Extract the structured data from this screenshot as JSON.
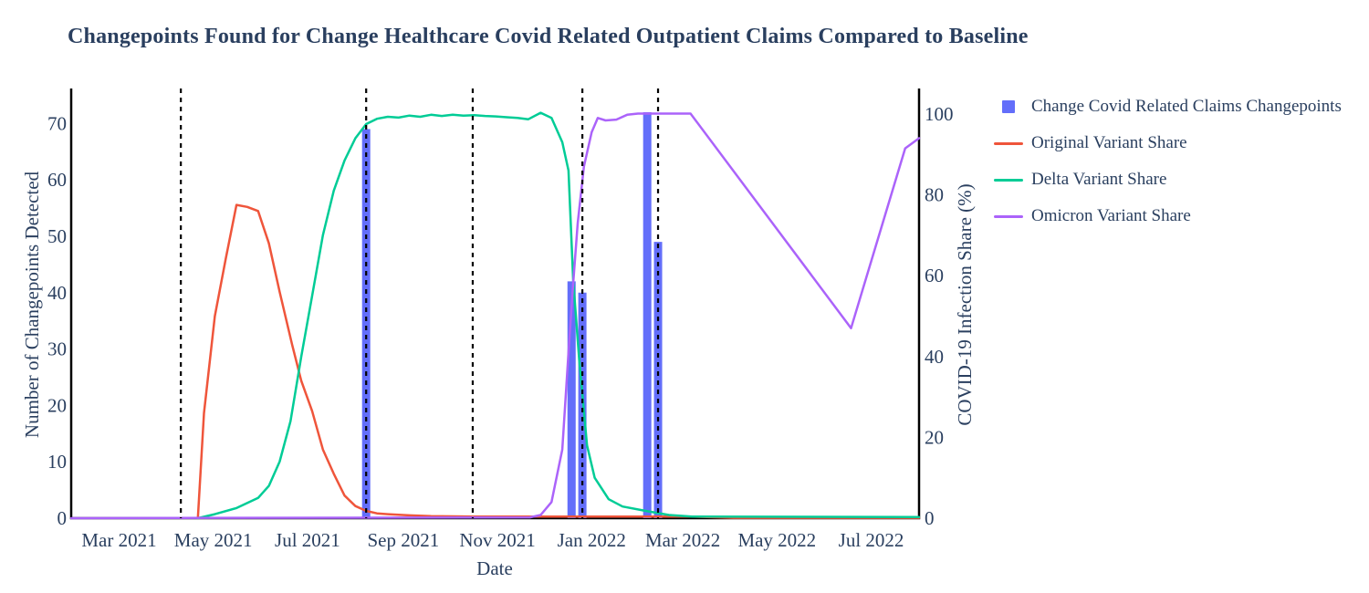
{
  "title": "Changepoints Found for Change Healthcare Covid Related Outpatient Claims Compared to Baseline",
  "colors": {
    "text": "#2a3f5f",
    "axis_line": "#000000",
    "background": "#ffffff",
    "bar": "#636EFA",
    "original_variant": "#EF553B",
    "delta_variant": "#00CC96",
    "omicron_variant": "#AB63FA",
    "changepoint_vline": "#000000"
  },
  "legend": {
    "items": [
      {
        "label": "Change Covid Related Claims Changepoints",
        "marker": "square",
        "color": "#636EFA"
      },
      {
        "label": "Original Variant Share",
        "marker": "line",
        "color": "#EF553B"
      },
      {
        "label": "Delta Variant Share",
        "marker": "line",
        "color": "#00CC96"
      },
      {
        "label": "Omicron Variant Share",
        "marker": "line",
        "color": "#AB63FA"
      }
    ]
  },
  "chart_data": {
    "type": "mixed-bar-line",
    "grid": false,
    "legend_position": "right",
    "x_axis": {
      "label": "Date",
      "range": [
        "2021-01-29",
        "2022-08-01"
      ],
      "ticks": [
        {
          "date": "2021-03-01",
          "label": "Mar 2021"
        },
        {
          "date": "2021-05-01",
          "label": "May 2021"
        },
        {
          "date": "2021-07-01",
          "label": "Jul 2021"
        },
        {
          "date": "2021-09-01",
          "label": "Sep 2021"
        },
        {
          "date": "2021-11-01",
          "label": "Nov 2021"
        },
        {
          "date": "2022-01-01",
          "label": "Jan 2022"
        },
        {
          "date": "2022-03-01",
          "label": "Mar 2022"
        },
        {
          "date": "2022-05-01",
          "label": "May 2022"
        },
        {
          "date": "2022-07-01",
          "label": "Jul 2022"
        }
      ]
    },
    "y_left": {
      "label": "Number of Changepoints Detected",
      "range": [
        0,
        76.2
      ],
      "ticks": [
        0,
        10,
        20,
        30,
        40,
        50,
        60,
        70
      ]
    },
    "y_right": {
      "label": "COVID-19 Infection Share (%)",
      "range": [
        0,
        106.3
      ],
      "ticks": [
        0,
        20,
        40,
        60,
        80,
        100
      ]
    },
    "bars": {
      "name": "Change Covid Related Claims Changepoints",
      "color": "#636EFA",
      "axis": "left",
      "points": [
        {
          "date": "2021-08-08",
          "count": 69
        },
        {
          "date": "2021-12-19",
          "count": 42
        },
        {
          "date": "2021-12-26",
          "count": 40
        },
        {
          "date": "2022-02-06",
          "count": 72
        },
        {
          "date": "2022-02-13",
          "count": 49
        }
      ]
    },
    "vlines": {
      "color": "#000000",
      "style": "dashed",
      "dates": [
        "2021-04-10",
        "2021-08-08",
        "2021-10-16",
        "2021-12-26",
        "2022-02-13"
      ]
    },
    "series": [
      {
        "name": "Original Variant Share",
        "color": "#EF553B",
        "axis": "right",
        "points": [
          [
            "2021-04-21",
            0
          ],
          [
            "2021-04-25",
            26
          ],
          [
            "2021-05-02",
            50
          ],
          [
            "2021-05-09",
            64
          ],
          [
            "2021-05-16",
            77.5
          ],
          [
            "2021-05-23",
            77
          ],
          [
            "2021-05-30",
            76
          ],
          [
            "2021-06-06",
            68
          ],
          [
            "2021-06-13",
            56
          ],
          [
            "2021-06-21",
            43
          ],
          [
            "2021-06-27",
            34
          ],
          [
            "2021-07-04",
            26.5
          ],
          [
            "2021-07-11",
            17
          ],
          [
            "2021-07-18",
            11
          ],
          [
            "2021-07-25",
            5.6
          ],
          [
            "2021-08-01",
            3
          ],
          [
            "2021-08-08",
            1.8
          ],
          [
            "2021-08-15",
            1.2
          ],
          [
            "2021-08-22",
            1
          ],
          [
            "2021-09-05",
            0.7
          ],
          [
            "2021-09-19",
            0.5
          ],
          [
            "2021-10-17",
            0.4
          ],
          [
            "2021-11-14",
            0.4
          ],
          [
            "2022-03-06",
            0.4
          ],
          [
            "2022-04-03",
            0.1
          ],
          [
            "2022-08-01",
            0.1
          ]
        ]
      },
      {
        "name": "Delta Variant Share",
        "color": "#00CC96",
        "axis": "right",
        "points": [
          [
            "2021-04-21",
            0
          ],
          [
            "2021-05-02",
            1
          ],
          [
            "2021-05-16",
            2.5
          ],
          [
            "2021-05-30",
            5
          ],
          [
            "2021-06-06",
            8
          ],
          [
            "2021-06-13",
            14
          ],
          [
            "2021-06-20",
            24
          ],
          [
            "2021-06-27",
            40
          ],
          [
            "2021-07-04",
            55
          ],
          [
            "2021-07-11",
            70
          ],
          [
            "2021-07-18",
            81
          ],
          [
            "2021-07-25",
            88.5
          ],
          [
            "2021-08-01",
            94
          ],
          [
            "2021-08-08",
            97.5
          ],
          [
            "2021-08-15",
            98.8
          ],
          [
            "2021-08-22",
            99.3
          ],
          [
            "2021-08-29",
            99.1
          ],
          [
            "2021-09-05",
            99.6
          ],
          [
            "2021-09-12",
            99.3
          ],
          [
            "2021-09-19",
            99.8
          ],
          [
            "2021-09-26",
            99.5
          ],
          [
            "2021-10-03",
            99.8
          ],
          [
            "2021-10-10",
            99.6
          ],
          [
            "2021-10-17",
            99.7
          ],
          [
            "2021-10-24",
            99.5
          ],
          [
            "2021-10-31",
            99.4
          ],
          [
            "2021-11-07",
            99.2
          ],
          [
            "2021-11-14",
            99
          ],
          [
            "2021-11-21",
            98.7
          ],
          [
            "2021-11-29",
            100.3
          ],
          [
            "2021-12-06",
            99
          ],
          [
            "2021-12-13",
            93
          ],
          [
            "2021-12-17",
            86
          ],
          [
            "2021-12-20",
            59
          ],
          [
            "2021-12-24",
            39
          ],
          [
            "2021-12-29",
            18
          ],
          [
            "2022-01-03",
            10
          ],
          [
            "2022-01-12",
            4.7
          ],
          [
            "2022-01-21",
            2.9
          ],
          [
            "2022-02-05",
            1.8
          ],
          [
            "2022-02-20",
            0.8
          ],
          [
            "2022-03-07",
            0.4
          ],
          [
            "2022-08-01",
            0.3
          ]
        ]
      },
      {
        "name": "Omicron Variant Share",
        "color": "#AB63FA",
        "axis": "right",
        "points": [
          [
            "2021-01-29",
            0
          ],
          [
            "2021-11-22",
            0.2
          ],
          [
            "2021-11-29",
            0.8
          ],
          [
            "2021-12-06",
            4
          ],
          [
            "2021-12-13",
            17
          ],
          [
            "2021-12-17",
            41
          ],
          [
            "2021-12-20",
            58
          ],
          [
            "2021-12-23",
            73
          ],
          [
            "2021-12-27",
            87
          ],
          [
            "2022-01-01",
            95.5
          ],
          [
            "2022-01-05",
            99
          ],
          [
            "2022-01-10",
            98.4
          ],
          [
            "2022-01-17",
            98.6
          ],
          [
            "2022-01-24",
            99.8
          ],
          [
            "2022-01-31",
            100.1
          ],
          [
            "2022-03-06",
            100.1
          ],
          [
            "2022-06-18",
            47
          ],
          [
            "2022-07-23",
            91.5
          ],
          [
            "2022-08-01",
            94
          ]
        ]
      }
    ]
  }
}
